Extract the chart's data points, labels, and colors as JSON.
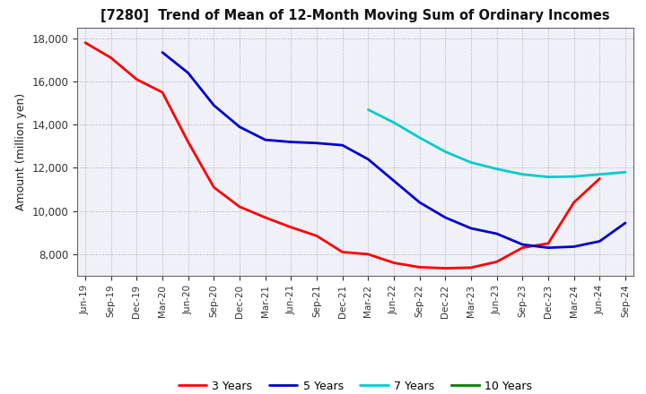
{
  "title": "[7280]  Trend of Mean of 12-Month Moving Sum of Ordinary Incomes",
  "ylabel": "Amount (million yen)",
  "background_color": "#FFFFFF",
  "plot_bg_color": "#F0F0F8",
  "grid_color": "#999999",
  "ylim": [
    7000,
    18500
  ],
  "yticks": [
    8000,
    10000,
    12000,
    14000,
    16000,
    18000
  ],
  "series": {
    "3 Years": {
      "color": "#FF0000",
      "x": [
        "Jun-19",
        "Sep-19",
        "Dec-19",
        "Mar-20",
        "Jun-20",
        "Sep-20",
        "Dec-20",
        "Mar-21",
        "Jun-21",
        "Sep-21",
        "Dec-21",
        "Mar-22",
        "Jun-22",
        "Sep-22",
        "Dec-22",
        "Mar-23",
        "Jun-23",
        "Sep-23",
        "Dec-23",
        "Mar-24",
        "Jun-24"
      ],
      "y": [
        17800,
        17100,
        16100,
        15500,
        13200,
        11100,
        10200,
        9700,
        9250,
        8850,
        8100,
        8000,
        7600,
        7400,
        7350,
        7380,
        7650,
        8300,
        8500,
        10400,
        11500
      ]
    },
    "5 Years": {
      "color": "#0000CC",
      "x": [
        "Mar-20",
        "Jun-20",
        "Sep-20",
        "Dec-20",
        "Mar-21",
        "Jun-21",
        "Sep-21",
        "Dec-21",
        "Mar-22",
        "Jun-22",
        "Sep-22",
        "Dec-22",
        "Mar-23",
        "Jun-23",
        "Sep-23",
        "Dec-23",
        "Mar-24",
        "Jun-24",
        "Sep-24"
      ],
      "y": [
        17350,
        16400,
        14900,
        13900,
        13300,
        13200,
        13150,
        13050,
        12400,
        11400,
        10400,
        9700,
        9200,
        8950,
        8450,
        8300,
        8350,
        8600,
        9450
      ]
    },
    "7 Years": {
      "color": "#00CCCC",
      "x": [
        "Mar-22",
        "Jun-22",
        "Sep-22",
        "Dec-22",
        "Mar-23",
        "Jun-23",
        "Sep-23",
        "Dec-23",
        "Mar-24",
        "Jun-24",
        "Sep-24"
      ],
      "y": [
        14700,
        14100,
        13400,
        12750,
        12250,
        11950,
        11700,
        11580,
        11600,
        11700,
        11800
      ]
    },
    "10 Years": {
      "color": "#008000",
      "x": [],
      "y": []
    }
  },
  "x_labels": [
    "Jun-19",
    "Sep-19",
    "Dec-19",
    "Mar-20",
    "Jun-20",
    "Sep-20",
    "Dec-20",
    "Mar-21",
    "Jun-21",
    "Sep-21",
    "Dec-21",
    "Mar-22",
    "Jun-22",
    "Sep-22",
    "Dec-22",
    "Mar-23",
    "Jun-23",
    "Sep-23",
    "Dec-23",
    "Mar-24",
    "Jun-24",
    "Sep-24"
  ],
  "legend_labels": [
    "3 Years",
    "5 Years",
    "7 Years",
    "10 Years"
  ],
  "legend_colors": [
    "#FF0000",
    "#0000CC",
    "#00CCCC",
    "#008000"
  ]
}
